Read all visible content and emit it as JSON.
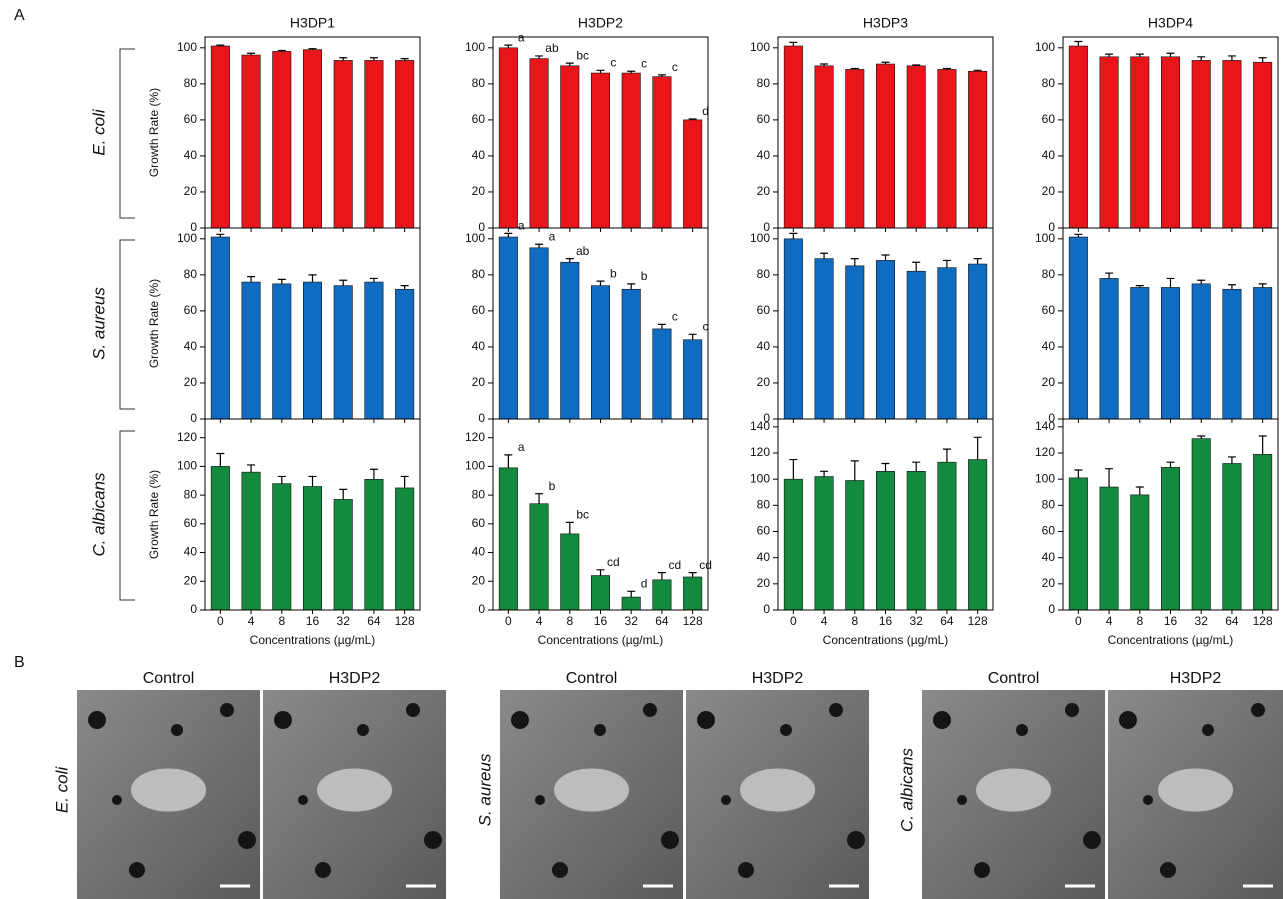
{
  "panel_labels": [
    "A",
    "B"
  ],
  "row_labels": [
    {
      "text": "E. coli",
      "color": "#e8161b"
    },
    {
      "text": "S. aureus",
      "color": "#0f6cc0"
    },
    {
      "text": "C. albicans",
      "color": "#138a3e"
    }
  ],
  "chart_data": [
    {
      "type": "bar",
      "title": "H3DP1",
      "ylabel": "Growth Rate (%)",
      "color": "#e8161b",
      "categories": [
        null,
        null,
        null,
        null,
        null,
        null,
        null
      ],
      "values": [
        101,
        96,
        98,
        99,
        93,
        93,
        93
      ],
      "errors": [
        0.5,
        1,
        0.5,
        0.5,
        1.5,
        1.5,
        1
      ],
      "ylim": [
        0,
        106
      ],
      "yticks": [
        0,
        20,
        40,
        60,
        80,
        100
      ]
    },
    {
      "type": "bar",
      "title": "H3DP2",
      "color": "#e8161b",
      "categories": [
        null,
        null,
        null,
        null,
        null,
        null,
        null
      ],
      "values": [
        100,
        94,
        90,
        86,
        86,
        84,
        60
      ],
      "errors": [
        1.5,
        1.5,
        1.5,
        1.5,
        1,
        1,
        0.5
      ],
      "annotations": [
        "a",
        "ab",
        "bc",
        "c",
        "c",
        "c",
        "d"
      ],
      "ylim": [
        0,
        106
      ],
      "yticks": [
        0,
        20,
        40,
        60,
        80,
        100
      ]
    },
    {
      "type": "bar",
      "title": "H3DP3",
      "color": "#e8161b",
      "categories": [
        null,
        null,
        null,
        null,
        null,
        null,
        null
      ],
      "values": [
        101,
        90,
        88,
        91,
        90,
        88,
        87
      ],
      "errors": [
        2,
        1,
        0.5,
        1,
        0.5,
        0.5,
        0.5
      ],
      "ylim": [
        0,
        106
      ],
      "yticks": [
        0,
        20,
        40,
        60,
        80,
        100
      ]
    },
    {
      "type": "bar",
      "title": "H3DP4",
      "color": "#e8161b",
      "categories": [
        null,
        null,
        null,
        null,
        null,
        null,
        null
      ],
      "values": [
        101,
        95,
        95,
        95,
        93,
        93,
        92
      ],
      "errors": [
        2.5,
        1.5,
        1.5,
        2,
        2,
        2.5,
        2.5
      ],
      "ylim": [
        0,
        106
      ],
      "yticks": [
        0,
        20,
        40,
        60,
        80,
        100
      ]
    },
    {
      "type": "bar",
      "ylabel": "Growth Rate (%)",
      "color": "#0f6cc0",
      "categories": [
        null,
        null,
        null,
        null,
        null,
        null,
        null
      ],
      "values": [
        101,
        76,
        75,
        76,
        74,
        76,
        72
      ],
      "errors": [
        1.5,
        3,
        2.5,
        4,
        3,
        2,
        2
      ],
      "ylim": [
        0,
        106
      ],
      "yticks": [
        0,
        20,
        40,
        60,
        80,
        100
      ]
    },
    {
      "type": "bar",
      "color": "#0f6cc0",
      "categories": [
        null,
        null,
        null,
        null,
        null,
        null,
        null
      ],
      "values": [
        101,
        95,
        87,
        74,
        72,
        50,
        44
      ],
      "errors": [
        2,
        2,
        2,
        2.5,
        3,
        2.5,
        3
      ],
      "annotations": [
        "a",
        "a",
        "ab",
        "b",
        "b",
        "c",
        "c"
      ],
      "ylim": [
        0,
        106
      ],
      "yticks": [
        0,
        20,
        40,
        60,
        80,
        100
      ]
    },
    {
      "type": "bar",
      "color": "#0f6cc0",
      "categories": [
        null,
        null,
        null,
        null,
        null,
        null,
        null
      ],
      "values": [
        100,
        89,
        85,
        88,
        82,
        84,
        86
      ],
      "errors": [
        3,
        3,
        4,
        3,
        5,
        4,
        3
      ],
      "ylim": [
        0,
        106
      ],
      "yticks": [
        0,
        20,
        40,
        60,
        80,
        100
      ]
    },
    {
      "type": "bar",
      "color": "#0f6cc0",
      "categories": [
        null,
        null,
        null,
        null,
        null,
        null,
        null
      ],
      "values": [
        101,
        78,
        73,
        73,
        75,
        72,
        73
      ],
      "errors": [
        1.5,
        3,
        1,
        5,
        2,
        2.5,
        2
      ],
      "ylim": [
        0,
        106
      ],
      "yticks": [
        0,
        20,
        40,
        60,
        80,
        100
      ]
    },
    {
      "type": "bar",
      "ylabel": "Growth Rate (%)",
      "xlabel": "Concentrations (µg/mL)",
      "color": "#138a3e",
      "categories": [
        "0",
        "4",
        "8",
        "16",
        "32",
        "64",
        "128"
      ],
      "values": [
        100,
        96,
        88,
        86,
        77,
        91,
        85
      ],
      "errors": [
        9,
        5,
        5,
        7,
        7,
        7,
        8
      ],
      "ylim": [
        0,
        133
      ],
      "yticks": [
        0,
        20,
        40,
        60,
        80,
        100,
        120
      ]
    },
    {
      "type": "bar",
      "xlabel": "Concentrations (µg/mL)",
      "color": "#138a3e",
      "categories": [
        "0",
        "4",
        "8",
        "16",
        "32",
        "64",
        "128"
      ],
      "values": [
        99,
        74,
        53,
        24,
        9,
        21,
        23
      ],
      "errors": [
        9,
        7,
        8,
        4,
        4,
        5,
        3
      ],
      "annotations": [
        "a",
        "b",
        "bc",
        "cd",
        "d",
        "cd",
        "cd"
      ],
      "ylim": [
        0,
        133
      ],
      "yticks": [
        0,
        20,
        40,
        60,
        80,
        100,
        120
      ]
    },
    {
      "type": "bar",
      "xlabel": "Concentrations (µg/mL)",
      "color": "#138a3e",
      "categories": [
        "0",
        "4",
        "8",
        "16",
        "32",
        "64",
        "128"
      ],
      "values": [
        100,
        102,
        99,
        106,
        106,
        113,
        115
      ],
      "errors": [
        15,
        4,
        15,
        6,
        7,
        10,
        17
      ],
      "ylim": [
        0,
        146
      ],
      "yticks": [
        0,
        20,
        40,
        60,
        80,
        100,
        120,
        140
      ]
    },
    {
      "type": "bar",
      "xlabel": "Concentrations (µg/mL)",
      "color": "#138a3e",
      "categories": [
        "0",
        "4",
        "8",
        "16",
        "32",
        "64",
        "128"
      ],
      "values": [
        101,
        94,
        88,
        109,
        131,
        112,
        119
      ],
      "errors": [
        6,
        14,
        6,
        4,
        2,
        5,
        14
      ],
      "ylim": [
        0,
        146
      ],
      "yticks": [
        0,
        20,
        40,
        60,
        80,
        100,
        120,
        140
      ]
    }
  ],
  "panel_b": {
    "groups": [
      {
        "organism": "E. coli",
        "color": "#e8161b",
        "titles": [
          "Control",
          "H3DP2"
        ]
      },
      {
        "organism": "S. aureus",
        "color": "#0f6cc0",
        "titles": [
          "Control",
          "H3DP2"
        ]
      },
      {
        "organism": "C. albicans",
        "color": "#138a3e",
        "titles": [
          "Control",
          "H3DP2"
        ]
      }
    ]
  }
}
